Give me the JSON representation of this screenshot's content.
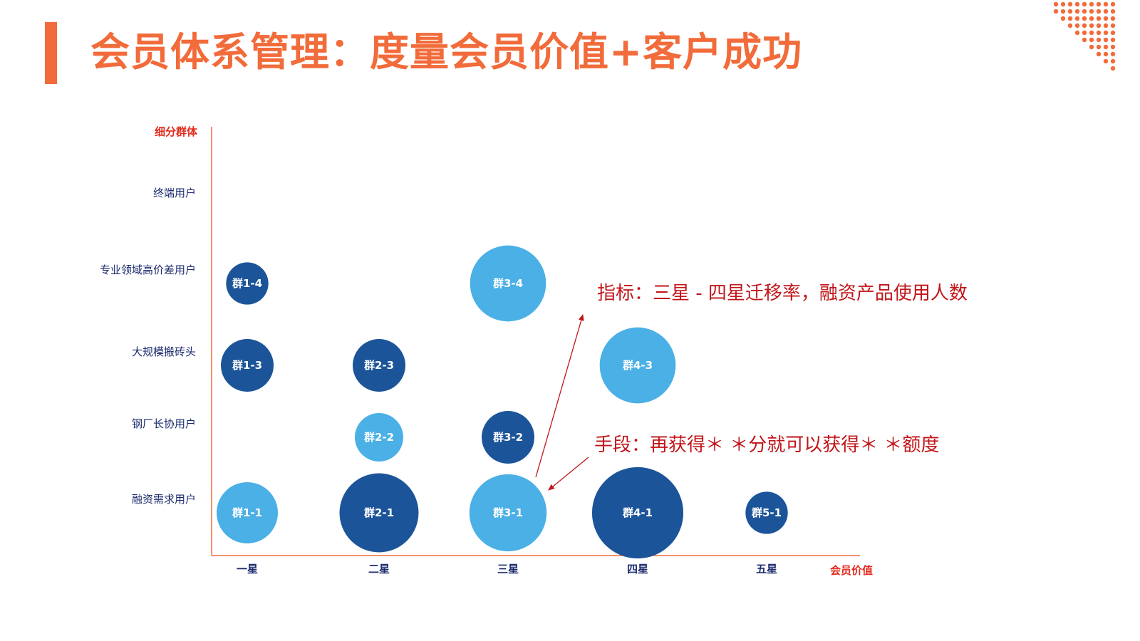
{
  "header": {
    "title": "会员体系管理：度量会员价值+客户成功"
  },
  "colors": {
    "accent": "#f26b3a",
    "axis": "#f26b3a",
    "dark_bubble": "#1c5499",
    "light_bubble": "#4ab0e6",
    "annotation": "#c0161a"
  },
  "chart_data": {
    "type": "scatter",
    "xlabel": "会员价值",
    "ylabel": "细分群体",
    "x_categories": [
      "一星",
      "二星",
      "三星",
      "四星",
      "五星"
    ],
    "y_categories": [
      "融资需求用户",
      "钢厂长协用户",
      "大规模搬砖头",
      "专业领域高价差用户",
      "终端用户"
    ],
    "grid": false,
    "bubbles": [
      {
        "label": "群1-1",
        "x": "一星",
        "y": "融资需求用户",
        "size": 1.0,
        "color": "light"
      },
      {
        "label": "群1-3",
        "x": "一星",
        "y": "大规模搬砖头",
        "size": 0.86,
        "color": "dark"
      },
      {
        "label": "群1-4",
        "x": "一星",
        "y": "专业领域高价差用户",
        "size": 0.69,
        "color": "dark"
      },
      {
        "label": "群2-1",
        "x": "二星",
        "y": "融资需求用户",
        "size": 1.29,
        "color": "dark"
      },
      {
        "label": "群2-2",
        "x": "二星",
        "y": "钢厂长协用户",
        "size": 0.79,
        "color": "light"
      },
      {
        "label": "群2-3",
        "x": "二星",
        "y": "大规模搬砖头",
        "size": 0.86,
        "color": "dark"
      },
      {
        "label": "群3-1",
        "x": "三星",
        "y": "融资需求用户",
        "size": 1.26,
        "color": "light"
      },
      {
        "label": "群3-2",
        "x": "三星",
        "y": "钢厂长协用户",
        "size": 0.86,
        "color": "dark"
      },
      {
        "label": "群3-4",
        "x": "三星",
        "y": "专业领域高价差用户",
        "size": 1.24,
        "color": "light"
      },
      {
        "label": "群4-1",
        "x": "四星",
        "y": "融资需求用户",
        "size": 1.49,
        "color": "dark"
      },
      {
        "label": "群4-3",
        "x": "四星",
        "y": "大规模搬砖头",
        "size": 1.24,
        "color": "light"
      },
      {
        "label": "群5-1",
        "x": "五星",
        "y": "融资需求用户",
        "size": 0.69,
        "color": "dark"
      }
    ],
    "annotations": [
      {
        "id": "metric",
        "text": "指标：三星 - 四星迁移率，融资产品使用人数"
      },
      {
        "id": "means",
        "text": "手段：再获得＊ ＊分就可以获得＊ ＊额度"
      }
    ]
  }
}
